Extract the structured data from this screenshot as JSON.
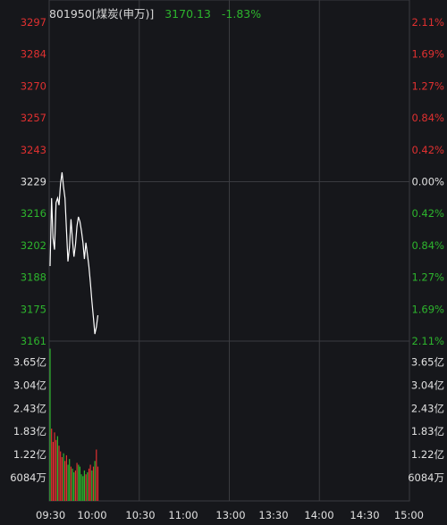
{
  "header": {
    "code_name": "801950[煤炭(申万)]",
    "price": "3170.13",
    "change_pct": "-1.83%"
  },
  "colors": {
    "background": "#16171b",
    "grid": "#3a3b40",
    "up": "#e03030",
    "down": "#2db52d",
    "neutral": "#d8d8d8",
    "line": "#ffffff",
    "axis_text_neutral": "#e0e0e0"
  },
  "chart_data": [
    {
      "type": "line",
      "title": "",
      "xlabel": "",
      "ylabel": "",
      "ylim": [
        3161,
        3297
      ],
      "reference_value": 3229,
      "y_ticks": [
        {
          "price": "3297",
          "pct": "2.11%",
          "side": "up"
        },
        {
          "price": "3284",
          "pct": "1.69%",
          "side": "up"
        },
        {
          "price": "3270",
          "pct": "1.27%",
          "side": "up"
        },
        {
          "price": "3257",
          "pct": "0.84%",
          "side": "up"
        },
        {
          "price": "3243",
          "pct": "0.42%",
          "side": "up"
        },
        {
          "price": "3229",
          "pct": "0.00%",
          "side": "flat"
        },
        {
          "price": "3216",
          "pct": "0.42%",
          "side": "down"
        },
        {
          "price": "3202",
          "pct": "0.84%",
          "side": "down"
        },
        {
          "price": "3188",
          "pct": "1.27%",
          "side": "down"
        },
        {
          "price": "3175",
          "pct": "1.69%",
          "side": "down"
        },
        {
          "price": "3161",
          "pct": "2.11%",
          "side": "down"
        }
      ],
      "x_ticks": [
        "09:30",
        "10:00",
        "10:30",
        "11:00",
        "13:00",
        "13:30",
        "14:00",
        "14:30",
        "15:00"
      ],
      "total_minutes": 240,
      "series": [
        {
          "name": "",
          "points": [
            [
              0,
              3193
            ],
            [
              1,
              3222
            ],
            [
              2,
              3205
            ],
            [
              3,
              3200
            ],
            [
              4,
              3220
            ],
            [
              5,
              3222
            ],
            [
              6,
              3219
            ],
            [
              7,
              3228
            ],
            [
              8,
              3233
            ],
            [
              9,
              3227
            ],
            [
              10,
              3222
            ],
            [
              11,
              3208
            ],
            [
              12,
              3195
            ],
            [
              13,
              3201
            ],
            [
              14,
              3213
            ],
            [
              15,
              3204
            ],
            [
              16,
              3197
            ],
            [
              17,
              3202
            ],
            [
              18,
              3210
            ],
            [
              19,
              3214
            ],
            [
              20,
              3212
            ],
            [
              21,
              3208
            ],
            [
              22,
              3203
            ],
            [
              23,
              3196
            ],
            [
              24,
              3203
            ],
            [
              25,
              3198
            ],
            [
              26,
              3193
            ],
            [
              27,
              3186
            ],
            [
              28,
              3178
            ],
            [
              29,
              3171
            ],
            [
              30,
              3164
            ],
            [
              31,
              3167
            ],
            [
              32,
              3172
            ]
          ]
        }
      ]
    },
    {
      "type": "bar",
      "title": "",
      "xlabel": "",
      "ylabel": "",
      "ylim": [
        0,
        4.2
      ],
      "y_ticks": [
        "3.65亿",
        "3.04亿",
        "2.43亿",
        "1.83亿",
        "1.22亿",
        "6084万"
      ],
      "y_tick_values": [
        3.65,
        3.04,
        2.43,
        1.83,
        1.22,
        0.6084
      ],
      "unit": "亿",
      "bars": [
        {
          "v": 4.0,
          "d": "down"
        },
        {
          "v": 1.9,
          "d": "up"
        },
        {
          "v": 1.55,
          "d": "up"
        },
        {
          "v": 1.8,
          "d": "up"
        },
        {
          "v": 1.6,
          "d": "up"
        },
        {
          "v": 1.7,
          "d": "down"
        },
        {
          "v": 1.45,
          "d": "up"
        },
        {
          "v": 1.3,
          "d": "up"
        },
        {
          "v": 1.15,
          "d": "up"
        },
        {
          "v": 1.25,
          "d": "down"
        },
        {
          "v": 1.05,
          "d": "up"
        },
        {
          "v": 1.2,
          "d": "up"
        },
        {
          "v": 0.95,
          "d": "down"
        },
        {
          "v": 1.1,
          "d": "down"
        },
        {
          "v": 0.9,
          "d": "up"
        },
        {
          "v": 0.85,
          "d": "down"
        },
        {
          "v": 0.75,
          "d": "down"
        },
        {
          "v": 0.8,
          "d": "up"
        },
        {
          "v": 1.0,
          "d": "up"
        },
        {
          "v": 0.95,
          "d": "down"
        },
        {
          "v": 0.9,
          "d": "down"
        },
        {
          "v": 0.7,
          "d": "down"
        },
        {
          "v": 0.65,
          "d": "down"
        },
        {
          "v": 0.8,
          "d": "down"
        },
        {
          "v": 0.7,
          "d": "up"
        },
        {
          "v": 0.75,
          "d": "down"
        },
        {
          "v": 0.85,
          "d": "up"
        },
        {
          "v": 0.95,
          "d": "up"
        },
        {
          "v": 0.8,
          "d": "down"
        },
        {
          "v": 0.9,
          "d": "up"
        },
        {
          "v": 1.05,
          "d": "down"
        },
        {
          "v": 1.35,
          "d": "up"
        },
        {
          "v": 0.9,
          "d": "up"
        }
      ]
    }
  ]
}
